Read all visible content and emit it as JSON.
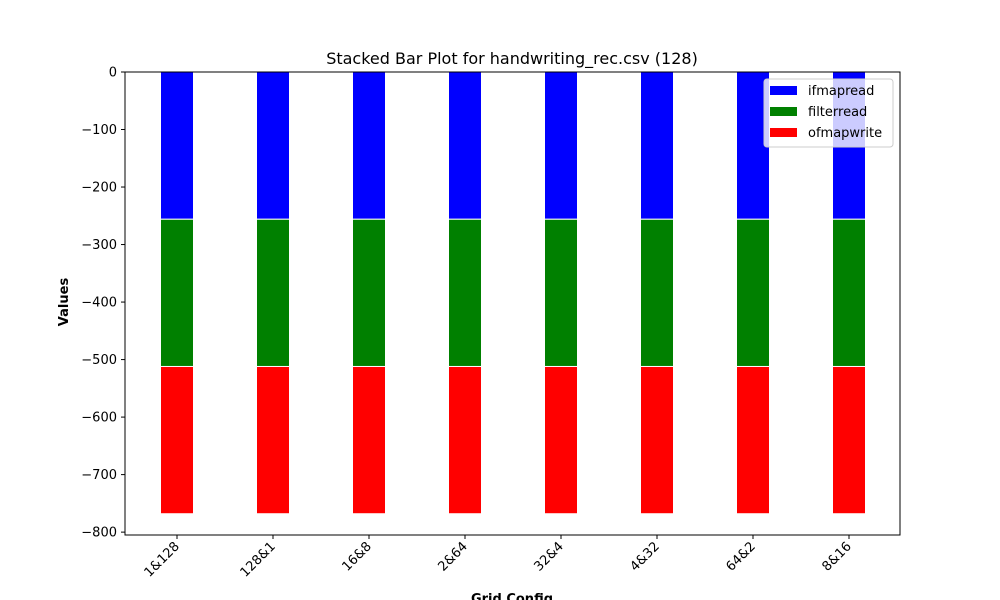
{
  "chart_data": {
    "type": "bar",
    "stacked": true,
    "title": "Stacked Bar Plot for handwriting_rec.csv (128)",
    "xlabel": "Grid Config",
    "ylabel": "Values",
    "categories": [
      "1&128",
      "128&1",
      "16&8",
      "2&64",
      "32&4",
      "4&32",
      "64&2",
      "8&16"
    ],
    "series": [
      {
        "name": "ifmapread",
        "color": "#0000ff",
        "values": [
          -256,
          -256,
          -256,
          -256,
          -256,
          -256,
          -256,
          -256
        ]
      },
      {
        "name": "filterread",
        "color": "#008000",
        "values": [
          -256,
          -256,
          -256,
          -256,
          -256,
          -256,
          -256,
          -256
        ]
      },
      {
        "name": "ofmapwrite",
        "color": "#ff0000",
        "values": [
          -256,
          -256,
          -256,
          -256,
          -256,
          -256,
          -256,
          -256
        ]
      }
    ],
    "ylim": [
      -805,
      0
    ],
    "yticks": [
      0,
      -100,
      -200,
      -300,
      -400,
      -500,
      -600,
      -700,
      -800
    ],
    "ytick_labels": [
      "0",
      "−100",
      "−200",
      "−300",
      "−400",
      "−500",
      "−600",
      "−700",
      "−800"
    ],
    "legend_position": "top-right",
    "grid": false
  }
}
